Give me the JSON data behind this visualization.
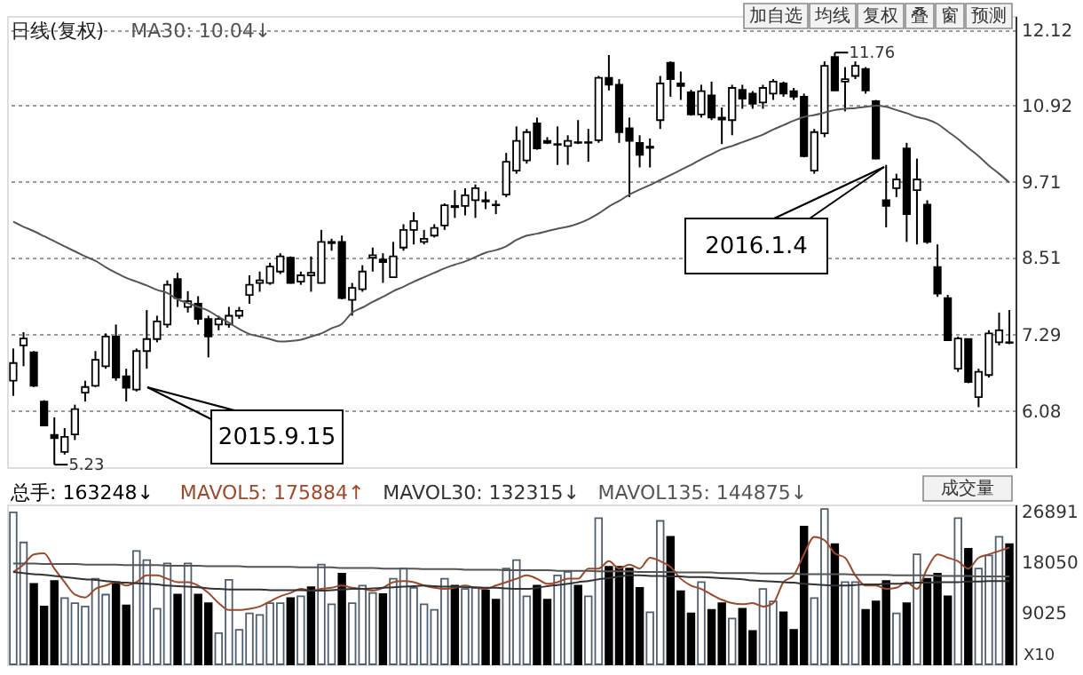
{
  "chart_data": [
    {
      "type": "candlestick",
      "title": "日线(复权)",
      "categories": [
        null,
        null,
        null,
        null,
        null,
        null,
        null,
        null,
        null,
        null,
        null,
        null,
        null,
        null,
        null,
        null,
        null,
        null,
        null,
        null,
        null,
        null,
        null,
        null,
        null,
        null,
        null,
        null,
        null,
        null,
        null,
        null,
        null,
        null,
        null,
        null,
        null,
        null,
        null,
        null,
        null,
        null,
        null,
        null,
        null,
        null,
        null,
        null,
        null,
        null,
        null,
        null,
        null,
        null,
        null,
        null,
        null,
        null,
        null,
        null,
        null,
        null,
        null,
        null,
        null,
        null,
        null,
        null,
        null,
        null,
        null,
        null,
        null,
        null,
        null,
        null,
        null,
        null,
        null,
        null,
        null,
        null,
        null,
        null,
        null,
        null,
        null,
        null,
        null,
        null,
        null,
        null,
        null,
        null,
        null,
        null,
        null,
        null
      ],
      "ohlc": [
        [
          6.56,
          7.07,
          6.32,
          6.84
        ],
        [
          7.12,
          7.33,
          6.79,
          7.23
        ],
        [
          7.01,
          7.03,
          6.46,
          6.48
        ],
        [
          6.23,
          6.25,
          5.84,
          5.85
        ],
        [
          5.7,
          5.98,
          5.23,
          5.65
        ],
        [
          5.43,
          5.81,
          5.39,
          5.67
        ],
        [
          5.71,
          6.18,
          5.62,
          6.11
        ],
        [
          6.37,
          6.56,
          6.23,
          6.46
        ],
        [
          6.48,
          7.03,
          6.46,
          6.89
        ],
        [
          6.79,
          7.31,
          6.75,
          7.26
        ],
        [
          7.26,
          7.45,
          6.56,
          6.61
        ],
        [
          6.63,
          6.75,
          6.23,
          6.45
        ],
        [
          6.42,
          7.07,
          6.39,
          7.03
        ],
        [
          7.03,
          7.68,
          6.75,
          7.22
        ],
        [
          7.22,
          7.59,
          7.17,
          7.5
        ],
        [
          7.45,
          8.15,
          7.4,
          8.08
        ],
        [
          8.17,
          8.27,
          7.73,
          7.87
        ],
        [
          7.73,
          7.98,
          7.64,
          7.82
        ],
        [
          7.78,
          7.9,
          7.45,
          7.54
        ],
        [
          7.54,
          7.59,
          6.93,
          7.26
        ],
        [
          7.45,
          7.59,
          7.36,
          7.54
        ],
        [
          7.45,
          7.73,
          7.4,
          7.59
        ],
        [
          7.59,
          7.73,
          7.54,
          7.67
        ],
        [
          7.92,
          8.23,
          7.78,
          8.08
        ],
        [
          8.11,
          8.29,
          7.97,
          8.15
        ],
        [
          8.11,
          8.43,
          8.08,
          8.37
        ],
        [
          8.29,
          8.58,
          8.25,
          8.53
        ],
        [
          8.51,
          8.53,
          8.1,
          8.11
        ],
        [
          8.13,
          8.29,
          8.08,
          8.23
        ],
        [
          8.23,
          8.53,
          7.97,
          8.27
        ],
        [
          8.11,
          8.95,
          8.1,
          8.76
        ],
        [
          8.74,
          8.81,
          8.62,
          8.76
        ],
        [
          8.76,
          8.86,
          7.85,
          7.87
        ],
        [
          7.84,
          8.11,
          7.59,
          8.03
        ],
        [
          8.01,
          8.39,
          7.97,
          8.29
        ],
        [
          8.51,
          8.67,
          8.29,
          8.55
        ],
        [
          8.48,
          8.58,
          8.11,
          8.44
        ],
        [
          8.2,
          8.76,
          8.2,
          8.53
        ],
        [
          8.67,
          9.04,
          8.62,
          8.95
        ],
        [
          8.95,
          9.23,
          8.72,
          9.09
        ],
        [
          8.76,
          8.95,
          8.72,
          8.81
        ],
        [
          8.86,
          9.04,
          8.83,
          8.98
        ],
        [
          9.02,
          9.37,
          8.95,
          9.34
        ],
        [
          9.33,
          9.58,
          9.14,
          9.31
        ],
        [
          9.33,
          9.61,
          9.18,
          9.5
        ],
        [
          9.42,
          9.67,
          9.14,
          9.61
        ],
        [
          9.4,
          9.56,
          9.28,
          9.42
        ],
        [
          9.34,
          9.42,
          9.2,
          9.35
        ],
        [
          9.51,
          10.17,
          9.47,
          10.03
        ],
        [
          9.89,
          10.59,
          9.84,
          10.36
        ],
        [
          10.05,
          10.55,
          10.0,
          10.5
        ],
        [
          10.64,
          10.73,
          10.22,
          10.24
        ],
        [
          10.36,
          10.42,
          10.31,
          10.33
        ],
        [
          10.3,
          10.59,
          9.98,
          10.31
        ],
        [
          10.28,
          10.45,
          9.98,
          10.36
        ],
        [
          10.33,
          10.69,
          10.31,
          10.34
        ],
        [
          10.34,
          10.55,
          10.03,
          10.33
        ],
        [
          10.37,
          11.39,
          10.33,
          11.36
        ],
        [
          11.36,
          11.72,
          11.16,
          11.25
        ],
        [
          11.25,
          11.34,
          10.33,
          10.5
        ],
        [
          10.56,
          10.73,
          9.47,
          10.36
        ],
        [
          10.33,
          10.45,
          9.94,
          10.14
        ],
        [
          10.25,
          10.4,
          9.94,
          10.27
        ],
        [
          10.69,
          11.39,
          10.55,
          11.27
        ],
        [
          11.6,
          11.62,
          11.06,
          11.34
        ],
        [
          11.27,
          11.46,
          11.01,
          11.23
        ],
        [
          11.13,
          11.17,
          10.76,
          10.78
        ],
        [
          10.78,
          11.25,
          10.73,
          11.15
        ],
        [
          11.08,
          11.3,
          10.69,
          10.73
        ],
        [
          10.73,
          10.89,
          10.31,
          10.7
        ],
        [
          10.69,
          11.25,
          10.45,
          11.2
        ],
        [
          11.17,
          11.25,
          10.87,
          11.03
        ],
        [
          11.11,
          11.15,
          10.87,
          10.95
        ],
        [
          10.97,
          11.25,
          10.87,
          11.2
        ],
        [
          11.11,
          11.34,
          11.01,
          11.3
        ],
        [
          11.27,
          11.3,
          11.06,
          11.11
        ],
        [
          11.15,
          11.2,
          11.01,
          11.06
        ],
        [
          11.06,
          11.11,
          10.1,
          10.12
        ],
        [
          9.89,
          10.55,
          9.84,
          10.5
        ],
        [
          10.48,
          11.62,
          10.42,
          11.55
        ],
        [
          11.69,
          11.76,
          11.15,
          11.16
        ],
        [
          11.3,
          11.53,
          10.83,
          11.34
        ],
        [
          11.39,
          11.62,
          11.34,
          11.55
        ],
        [
          11.5,
          11.53,
          11.11,
          11.16
        ],
        [
          10.99,
          11.01,
          10.07,
          10.08
        ],
        [
          9.42,
          9.98,
          8.99,
          9.33
        ],
        [
          9.61,
          9.84,
          9.47,
          9.75
        ],
        [
          10.24,
          10.33,
          8.76,
          9.2
        ],
        [
          9.58,
          10.08,
          8.72,
          9.75
        ],
        [
          9.35,
          9.42,
          8.73,
          8.76
        ],
        [
          8.36,
          8.72,
          7.89,
          7.94
        ],
        [
          7.87,
          7.92,
          7.19,
          7.2
        ],
        [
          6.75,
          7.26,
          6.7,
          7.23
        ],
        [
          7.22,
          7.23,
          6.52,
          6.54
        ],
        [
          6.3,
          6.75,
          6.14,
          6.7
        ],
        [
          6.65,
          7.36,
          6.61,
          7.31
        ],
        [
          7.17,
          7.64,
          7.12,
          7.36
        ],
        [
          7.17,
          7.68,
          7.14,
          7.16
        ]
      ],
      "series": [
        {
          "name": "MA30: 10.04↓",
          "type": "line",
          "color": "#555555",
          "values": [
            9.08,
            9.0,
            8.93,
            8.85,
            8.77,
            8.69,
            8.61,
            8.53,
            8.46,
            8.36,
            8.27,
            8.19,
            8.13,
            8.07,
            8.0,
            7.95,
            7.85,
            7.79,
            7.73,
            7.67,
            7.57,
            7.48,
            7.38,
            7.3,
            7.26,
            7.22,
            7.18,
            7.19,
            7.21,
            7.26,
            7.31,
            7.39,
            7.46,
            7.64,
            7.72,
            7.81,
            7.89,
            7.98,
            8.05,
            8.13,
            8.2,
            8.27,
            8.34,
            8.4,
            8.45,
            8.52,
            8.59,
            8.63,
            8.69,
            8.79,
            8.86,
            8.89,
            8.93,
            8.97,
            9.0,
            9.05,
            9.12,
            9.21,
            9.32,
            9.41,
            9.51,
            9.59,
            9.66,
            9.74,
            9.82,
            9.9,
            9.98,
            10.07,
            10.15,
            10.23,
            10.28,
            10.34,
            10.4,
            10.46,
            10.54,
            10.61,
            10.68,
            10.74,
            10.77,
            10.81,
            10.85,
            10.87,
            10.88,
            10.9,
            10.92,
            10.9,
            10.85,
            10.8,
            10.74,
            10.7,
            10.63,
            10.51,
            10.39,
            10.25,
            10.12,
            9.97,
            9.84,
            9.7
          ]
        }
      ],
      "ylim": [
        5.19,
        12.34
      ],
      "yticks": [
        6.08,
        7.29,
        8.51,
        9.71,
        10.92,
        12.12
      ],
      "grid": "y",
      "legend": "top left",
      "tick_labels": "y",
      "annotations": [
        "2015.9.15",
        "2016.1.4",
        "11.76",
        "5.23",
        "加自选",
        "均线",
        "复权",
        "叠",
        "窗",
        "预测"
      ]
    },
    {
      "type": "bar",
      "categories": [
        null,
        null,
        null,
        null,
        null,
        null,
        null,
        null,
        null,
        null,
        null,
        null,
        null,
        null,
        null,
        null,
        null,
        null,
        null,
        null,
        null,
        null,
        null,
        null,
        null,
        null,
        null,
        null,
        null,
        null,
        null,
        null,
        null,
        null,
        null,
        null,
        null,
        null,
        null,
        null,
        null,
        null,
        null,
        null,
        null,
        null,
        null,
        null,
        null,
        null,
        null,
        null,
        null,
        null,
        null,
        null,
        null,
        null,
        null,
        null,
        null,
        null,
        null,
        null,
        null,
        null,
        null,
        null,
        null,
        null,
        null,
        null,
        null,
        null,
        null,
        null,
        null,
        null,
        null,
        null,
        null,
        null,
        null,
        null,
        null,
        null,
        null,
        null,
        null,
        null,
        null,
        null,
        null,
        null,
        null,
        null,
        null,
        null
      ],
      "series": [
        {
          "name": "总手: 163248↓",
          "colors": [
            "#ffffff",
            "#ffffff",
            "#000000",
            "#000000",
            "#000000",
            "#ffffff",
            "#ffffff",
            "#ffffff",
            "#ffffff",
            "#ffffff",
            "#000000",
            "#000000",
            "#ffffff",
            "#ffffff",
            "#ffffff",
            "#ffffff",
            "#000000",
            "#ffffff",
            "#000000",
            "#000000",
            "#ffffff",
            "#ffffff",
            "#ffffff",
            "#ffffff",
            "#ffffff",
            "#ffffff",
            "#ffffff",
            "#000000",
            "#ffffff",
            "#000000",
            "#ffffff",
            "#ffffff",
            "#000000",
            "#ffffff",
            "#ffffff",
            "#ffffff",
            "#000000",
            "#ffffff",
            "#ffffff",
            "#ffffff",
            "#ffffff",
            "#ffffff",
            "#ffffff",
            "#000000",
            "#ffffff",
            "#ffffff",
            "#000000",
            "#000000",
            "#ffffff",
            "#ffffff",
            "#ffffff",
            "#000000",
            "#000000",
            "#ffffff",
            "#ffffff",
            "#000000",
            "#ffffff",
            "#ffffff",
            "#000000",
            "#000000",
            "#000000",
            "#000000",
            "#ffffff",
            "#ffffff",
            "#000000",
            "#000000",
            "#000000",
            "#ffffff",
            "#000000",
            "#000000",
            "#ffffff",
            "#000000",
            "#000000",
            "#ffffff",
            "#ffffff",
            "#000000",
            "#000000",
            "#000000",
            "#ffffff",
            "#ffffff",
            "#000000",
            "#ffffff",
            "#ffffff",
            "#000000",
            "#000000",
            "#000000",
            "#ffffff",
            "#000000",
            "#ffffff",
            "#000000",
            "#000000",
            "#000000",
            "#ffffff",
            "#000000",
            "#ffffff",
            "#ffffff",
            "#ffffff",
            "#000000"
          ],
          "values": [
            26800,
            21500,
            14200,
            10200,
            14700,
            11700,
            10800,
            10200,
            15100,
            12300,
            14500,
            10400,
            20000,
            18400,
            9800,
            17800,
            12300,
            17800,
            12300,
            10800,
            5500,
            14900,
            6100,
            9000,
            8700,
            10800,
            10800,
            11700,
            12000,
            13600,
            17600,
            10600,
            16000,
            10800,
            13900,
            12600,
            12400,
            15100,
            16900,
            13500,
            10600,
            9600,
            15100,
            13900,
            13300,
            13500,
            13000,
            11400,
            16900,
            18400,
            12000,
            13900,
            11400,
            15700,
            16300,
            13900,
            12000,
            25800,
            17200,
            17200,
            16900,
            13500,
            9200,
            25300,
            22500,
            12900,
            9000,
            14500,
            9600,
            10800,
            8100,
            9800,
            5900,
            13300,
            11100,
            9200,
            6100,
            24300,
            11700,
            27400,
            21200,
            14500,
            14500,
            9600,
            11100,
            14700,
            9000,
            10800,
            19400,
            15100,
            16000,
            12000,
            25800,
            20400,
            16900,
            19200,
            22500,
            21200
          ]
        },
        {
          "name": "MAVOL5: 175884↑",
          "type": "line",
          "color": "#a0482a",
          "values": [
            16300,
            17600,
            19400,
            19600,
            16900,
            14500,
            12300,
            11800,
            13300,
            13900,
            14500,
            13900,
            14500,
            15700,
            15700,
            15100,
            14500,
            14500,
            13900,
            12600,
            10800,
            9600,
            9600,
            9800,
            10200,
            11100,
            12000,
            12600,
            13300,
            13000,
            13300,
            13500,
            13900,
            13500,
            13300,
            13000,
            13500,
            14500,
            14700,
            14500,
            13900,
            13500,
            13300,
            13500,
            13900,
            13500,
            13300,
            13900,
            14500,
            15100,
            15700,
            15100,
            14200,
            14500,
            15100,
            15100,
            16900,
            16900,
            18200,
            16900,
            17600,
            16900,
            18800,
            18200,
            17200,
            15100,
            13900,
            13300,
            12300,
            11400,
            10800,
            10600,
            10800,
            10200,
            10800,
            14500,
            15700,
            19400,
            22500,
            21900,
            19600,
            18800,
            15700,
            13900,
            13900,
            13300,
            13500,
            14500,
            13300,
            16900,
            19400,
            18800,
            18200,
            16900,
            18800,
            19400,
            20000,
            20600
          ]
        },
        {
          "name": "MAVOL30: 132315↓",
          "type": "line",
          "color": "#333333",
          "values": [
            16300,
            16100,
            15900,
            15800,
            15600,
            15400,
            15200,
            15000,
            14900,
            14700,
            14500,
            14400,
            14300,
            14200,
            14100,
            13900,
            13800,
            13700,
            13600,
            13400,
            13300,
            13200,
            13200,
            13200,
            13200,
            13100,
            13100,
            13100,
            13100,
            13000,
            13000,
            13100,
            13200,
            13300,
            13300,
            13400,
            13500,
            13600,
            13700,
            13800,
            13900,
            13800,
            13700,
            13700,
            13600,
            13600,
            13500,
            13500,
            13400,
            13300,
            13300,
            13500,
            13800,
            14000,
            14200,
            14500,
            14700,
            15000,
            15200,
            15500,
            15700,
            15700,
            15600,
            15600,
            15500,
            15500,
            15400,
            15400,
            15300,
            15200,
            15100,
            15000,
            14800,
            14700,
            14600,
            14500,
            14400,
            14200,
            14100,
            14000,
            13900,
            13900,
            14000,
            14100,
            14100,
            14200,
            14200,
            14300,
            14400,
            14400,
            14500,
            14500,
            14500,
            14600,
            14600,
            14700,
            14700,
            14700
          ]
        },
        {
          "name": "MAVOL135: 144875↓",
          "type": "line",
          "color": "#555555",
          "values": [
            17800,
            17800,
            17800,
            17700,
            17700,
            17700,
            17700,
            17600,
            17600,
            17600,
            17600,
            17500,
            17500,
            17500,
            17500,
            17400,
            17400,
            17400,
            17400,
            17300,
            17300,
            17300,
            17300,
            17200,
            17200,
            17200,
            17200,
            17200,
            17100,
            17100,
            17100,
            17100,
            17000,
            17000,
            17000,
            17000,
            16900,
            16900,
            16900,
            16900,
            16800,
            16800,
            16800,
            16800,
            16700,
            16700,
            16700,
            16700,
            16600,
            16600,
            16600,
            16600,
            16600,
            16500,
            16500,
            16500,
            16500,
            16400,
            16400,
            16400,
            16400,
            16300,
            16300,
            16300,
            16300,
            16200,
            16200,
            16200,
            16200,
            16100,
            16100,
            16100,
            16100,
            16000,
            16000,
            16000,
            16000,
            15900,
            15900,
            15900,
            15900,
            15900,
            15800,
            15800,
            15800,
            15800,
            15700,
            15700,
            15700,
            15700,
            15600,
            15600,
            15600,
            15600,
            15500,
            15500,
            15500,
            15500
          ]
        }
      ],
      "ylim": [
        0,
        28200
      ],
      "yticks": [
        9025,
        18050,
        26891
      ],
      "ylabel": "X10",
      "legend": "top left",
      "tick_labels": "y",
      "annotations": [
        "成交量"
      ]
    }
  ]
}
